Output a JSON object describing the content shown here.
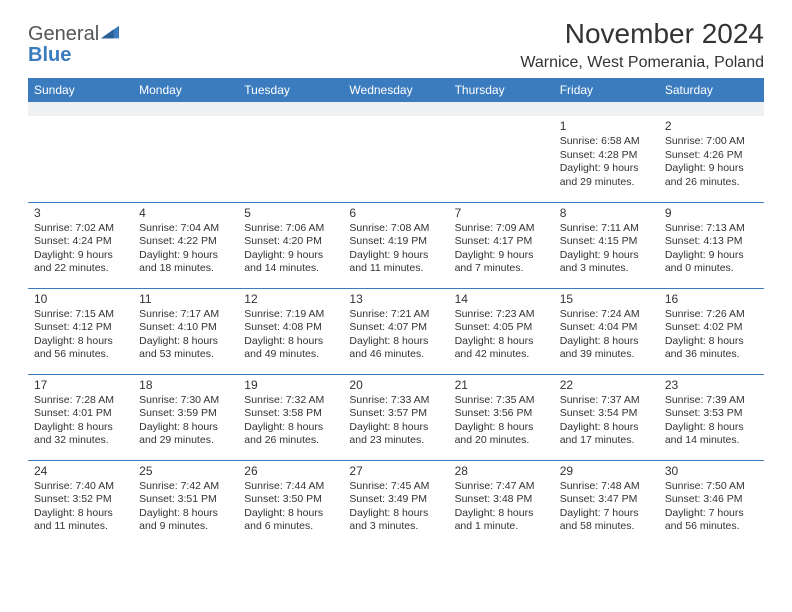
{
  "brand": {
    "line1": "General",
    "line2": "Blue"
  },
  "title": "November 2024",
  "location": "Warnice, West Pomerania, Poland",
  "style": {
    "header_bg": "#3b7cbf",
    "header_fg": "#ffffff",
    "spacer_bg": "#eef0f1",
    "rule_color": "#3b7cbf",
    "text_color": "#333333",
    "title_fontsize": 28,
    "weekday_fontsize": 12,
    "cell_fontsize": 10.5
  },
  "weekdays": [
    "Sunday",
    "Monday",
    "Tuesday",
    "Wednesday",
    "Thursday",
    "Friday",
    "Saturday"
  ],
  "weeks": [
    [
      null,
      null,
      null,
      null,
      null,
      {
        "n": "1",
        "sr": "6:58 AM",
        "ss": "4:28 PM",
        "dl": "9 hours and 29 minutes."
      },
      {
        "n": "2",
        "sr": "7:00 AM",
        "ss": "4:26 PM",
        "dl": "9 hours and 26 minutes."
      }
    ],
    [
      {
        "n": "3",
        "sr": "7:02 AM",
        "ss": "4:24 PM",
        "dl": "9 hours and 22 minutes."
      },
      {
        "n": "4",
        "sr": "7:04 AM",
        "ss": "4:22 PM",
        "dl": "9 hours and 18 minutes."
      },
      {
        "n": "5",
        "sr": "7:06 AM",
        "ss": "4:20 PM",
        "dl": "9 hours and 14 minutes."
      },
      {
        "n": "6",
        "sr": "7:08 AM",
        "ss": "4:19 PM",
        "dl": "9 hours and 11 minutes."
      },
      {
        "n": "7",
        "sr": "7:09 AM",
        "ss": "4:17 PM",
        "dl": "9 hours and 7 minutes."
      },
      {
        "n": "8",
        "sr": "7:11 AM",
        "ss": "4:15 PM",
        "dl": "9 hours and 3 minutes."
      },
      {
        "n": "9",
        "sr": "7:13 AM",
        "ss": "4:13 PM",
        "dl": "9 hours and 0 minutes."
      }
    ],
    [
      {
        "n": "10",
        "sr": "7:15 AM",
        "ss": "4:12 PM",
        "dl": "8 hours and 56 minutes."
      },
      {
        "n": "11",
        "sr": "7:17 AM",
        "ss": "4:10 PM",
        "dl": "8 hours and 53 minutes."
      },
      {
        "n": "12",
        "sr": "7:19 AM",
        "ss": "4:08 PM",
        "dl": "8 hours and 49 minutes."
      },
      {
        "n": "13",
        "sr": "7:21 AM",
        "ss": "4:07 PM",
        "dl": "8 hours and 46 minutes."
      },
      {
        "n": "14",
        "sr": "7:23 AM",
        "ss": "4:05 PM",
        "dl": "8 hours and 42 minutes."
      },
      {
        "n": "15",
        "sr": "7:24 AM",
        "ss": "4:04 PM",
        "dl": "8 hours and 39 minutes."
      },
      {
        "n": "16",
        "sr": "7:26 AM",
        "ss": "4:02 PM",
        "dl": "8 hours and 36 minutes."
      }
    ],
    [
      {
        "n": "17",
        "sr": "7:28 AM",
        "ss": "4:01 PM",
        "dl": "8 hours and 32 minutes."
      },
      {
        "n": "18",
        "sr": "7:30 AM",
        "ss": "3:59 PM",
        "dl": "8 hours and 29 minutes."
      },
      {
        "n": "19",
        "sr": "7:32 AM",
        "ss": "3:58 PM",
        "dl": "8 hours and 26 minutes."
      },
      {
        "n": "20",
        "sr": "7:33 AM",
        "ss": "3:57 PM",
        "dl": "8 hours and 23 minutes."
      },
      {
        "n": "21",
        "sr": "7:35 AM",
        "ss": "3:56 PM",
        "dl": "8 hours and 20 minutes."
      },
      {
        "n": "22",
        "sr": "7:37 AM",
        "ss": "3:54 PM",
        "dl": "8 hours and 17 minutes."
      },
      {
        "n": "23",
        "sr": "7:39 AM",
        "ss": "3:53 PM",
        "dl": "8 hours and 14 minutes."
      }
    ],
    [
      {
        "n": "24",
        "sr": "7:40 AM",
        "ss": "3:52 PM",
        "dl": "8 hours and 11 minutes."
      },
      {
        "n": "25",
        "sr": "7:42 AM",
        "ss": "3:51 PM",
        "dl": "8 hours and 9 minutes."
      },
      {
        "n": "26",
        "sr": "7:44 AM",
        "ss": "3:50 PM",
        "dl": "8 hours and 6 minutes."
      },
      {
        "n": "27",
        "sr": "7:45 AM",
        "ss": "3:49 PM",
        "dl": "8 hours and 3 minutes."
      },
      {
        "n": "28",
        "sr": "7:47 AM",
        "ss": "3:48 PM",
        "dl": "8 hours and 1 minute."
      },
      {
        "n": "29",
        "sr": "7:48 AM",
        "ss": "3:47 PM",
        "dl": "7 hours and 58 minutes."
      },
      {
        "n": "30",
        "sr": "7:50 AM",
        "ss": "3:46 PM",
        "dl": "7 hours and 56 minutes."
      }
    ]
  ],
  "labels": {
    "sunrise": "Sunrise: ",
    "sunset": "Sunset: ",
    "daylight": "Daylight: "
  }
}
